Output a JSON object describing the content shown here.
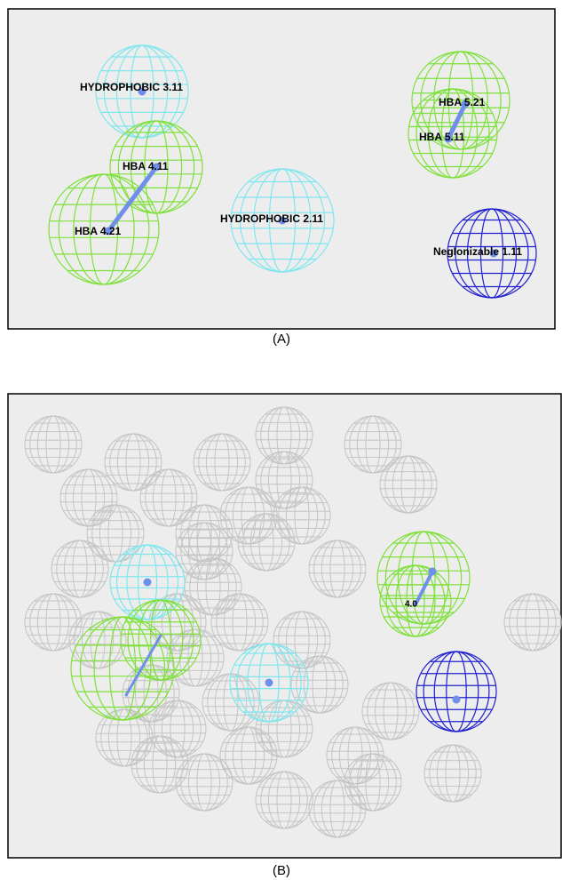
{
  "panel_a": {
    "caption": "(A)",
    "labels": [
      "HYDROPHOBIC 3.11",
      "HBA 4.11",
      "HBA 4.21",
      "HYDROPHOBIC 2.11",
      "HBA 5.21",
      "HBA 5.11",
      "NegIonizable 1.11"
    ]
  },
  "panel_b": {
    "caption": "(B)",
    "labels": [
      "4.0"
    ]
  }
}
